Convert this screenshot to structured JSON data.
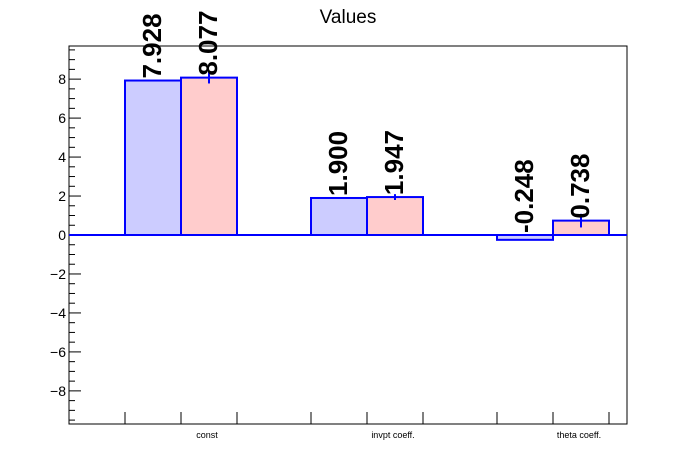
{
  "chart_data": {
    "type": "bar",
    "title": "Values",
    "categories": [
      "const",
      "invpt coeff.",
      "theta coeff."
    ],
    "series": [
      {
        "values": [
          7.928,
          1.9,
          -0.248
        ],
        "labels": [
          "7.928",
          "1.900",
          "-0.248"
        ],
        "errors": [
          0,
          0,
          0
        ],
        "fill": "#ccccff",
        "stroke": "#0000ff"
      },
      {
        "values": [
          8.077,
          1.947,
          0.738
        ],
        "labels": [
          "8.077",
          "1.947",
          "0.738"
        ],
        "errors": [
          0.3,
          0.15,
          0.35
        ],
        "fill": "#ffcccc",
        "stroke": "#0000ff"
      }
    ],
    "ylim": [
      -9.7,
      9.7
    ],
    "yticks": [
      "8",
      "6",
      "4",
      "2",
      "0",
      "−2",
      "−4",
      "−6",
      "−8"
    ],
    "ytick_values": [
      8,
      6,
      4,
      2,
      0,
      -2,
      -4,
      -6,
      -8
    ],
    "grid": false,
    "xlabel": "",
    "ylabel": ""
  }
}
